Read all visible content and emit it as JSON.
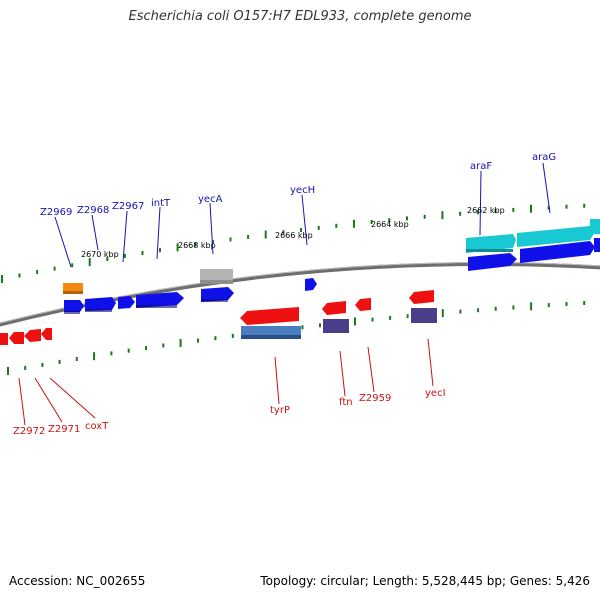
{
  "title": "Escherichia coli O157:H7 EDL933, complete genome",
  "footer": {
    "accession": "Accession: NC_002655",
    "topology": "Topology: circular; Length: 5,528,445 bp; Genes: 5,426"
  },
  "colors": {
    "forward_cds": "#1010e8",
    "reverse_cds": "#ee1111",
    "trna": "#f08a10",
    "pseudo": "#b4b4b4",
    "rrna_forward": "#18c8d2",
    "rrna_reverse": "#4a7ec0",
    "misc_reverse": "#4a3e8a",
    "tick": "#1a7a1a",
    "label_forward": "#1414b4",
    "label_reverse": "#c81414"
  },
  "ticks": [
    {
      "label": "2670 kbp"
    },
    {
      "label": "2668 kbp"
    },
    {
      "label": "2666 kbp"
    },
    {
      "label": "2664 kbp"
    },
    {
      "label": "2662 kbp"
    }
  ],
  "forward_genes": [
    {
      "name": "Z2969"
    },
    {
      "name": "Z2968"
    },
    {
      "name": "Z2967"
    },
    {
      "name": "intT"
    },
    {
      "name": "yecA"
    },
    {
      "name": "yecH"
    },
    {
      "name": "araF"
    },
    {
      "name": "araG"
    }
  ],
  "reverse_genes": [
    {
      "name": "Z2972"
    },
    {
      "name": "Z2971"
    },
    {
      "name": "coxT"
    },
    {
      "name": "tyrP"
    },
    {
      "name": "ftn"
    },
    {
      "name": "Z2959"
    },
    {
      "name": "yecI"
    }
  ]
}
